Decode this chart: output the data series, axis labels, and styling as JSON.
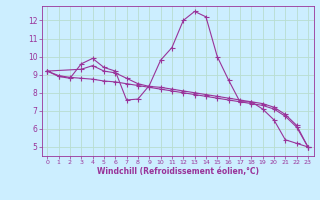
{
  "xlabel": "Windchill (Refroidissement éolien,°C)",
  "bg_color": "#cceeff",
  "grid_color": "#b8ddd0",
  "line_color": "#993399",
  "xlim": [
    -0.5,
    23.5
  ],
  "ylim": [
    4.5,
    12.8
  ],
  "yticks": [
    5,
    6,
    7,
    8,
    9,
    10,
    11,
    12
  ],
  "xticks": [
    0,
    1,
    2,
    3,
    4,
    5,
    6,
    7,
    8,
    9,
    10,
    11,
    12,
    13,
    14,
    15,
    16,
    17,
    18,
    19,
    20,
    21,
    22,
    23
  ],
  "line1_x": [
    0,
    1,
    2,
    3,
    4,
    5,
    6,
    7,
    8,
    9,
    10,
    11,
    12,
    13,
    14,
    15,
    16,
    17,
    18,
    19,
    20,
    21,
    22,
    23
  ],
  "line1_y": [
    9.2,
    8.9,
    8.8,
    9.6,
    9.9,
    9.4,
    9.2,
    7.6,
    7.65,
    8.4,
    9.8,
    10.5,
    12.0,
    12.5,
    12.2,
    10.0,
    8.7,
    7.5,
    7.5,
    7.1,
    6.5,
    5.4,
    5.2,
    5.0
  ],
  "line2_x": [
    0,
    1,
    2,
    3,
    4,
    5,
    6,
    7,
    8,
    9,
    10,
    11,
    12,
    13,
    14,
    15,
    16,
    17,
    18,
    19,
    20,
    21,
    22,
    23
  ],
  "line2_y": [
    9.2,
    8.95,
    8.85,
    8.8,
    8.75,
    8.65,
    8.6,
    8.5,
    8.4,
    8.3,
    8.2,
    8.1,
    8.0,
    7.9,
    7.8,
    7.7,
    7.6,
    7.5,
    7.4,
    7.3,
    7.1,
    6.7,
    6.1,
    5.0
  ],
  "line3_x": [
    0,
    3,
    4,
    5,
    6,
    7,
    8,
    9,
    10,
    11,
    12,
    13,
    14,
    15,
    16,
    17,
    18,
    19,
    20,
    21,
    22,
    23
  ],
  "line3_y": [
    9.2,
    9.3,
    9.5,
    9.2,
    9.1,
    8.8,
    8.5,
    8.35,
    8.3,
    8.2,
    8.1,
    8.0,
    7.9,
    7.8,
    7.7,
    7.6,
    7.5,
    7.4,
    7.2,
    6.8,
    6.2,
    5.0
  ]
}
